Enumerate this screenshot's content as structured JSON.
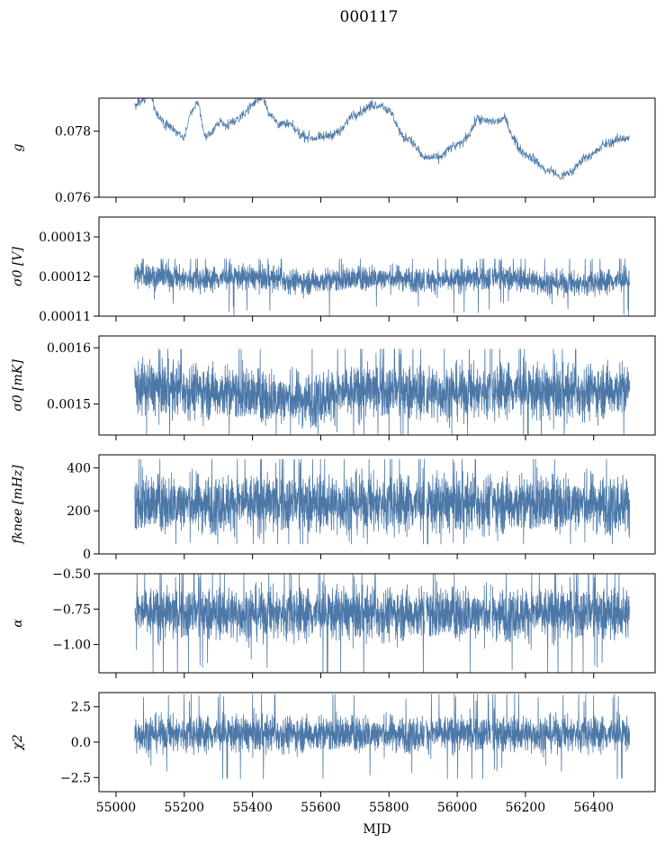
{
  "figure": {
    "title": "000117"
  },
  "chart_data": [
    {
      "type": "line",
      "ylabel": "g",
      "xlim": [
        54950,
        56580
      ],
      "ylim": [
        0.076,
        0.079
      ],
      "yticks": [
        0.076,
        0.078
      ],
      "ytick_labels": [
        "0.076",
        "0.078"
      ],
      "xticks": [
        55000,
        55200,
        55400,
        55600,
        55800,
        56000,
        56200,
        56400
      ],
      "xtick_labels": [],
      "color": "#4c78a8",
      "series": [
        {
          "x": [
            55055,
            55080,
            55100,
            55120,
            55140,
            55160,
            55180,
            55200,
            55220,
            55240,
            55260,
            55280,
            55300,
            55330,
            55360,
            55390,
            55410,
            55430,
            55450,
            55480,
            55510,
            55540,
            55570,
            55600,
            55630,
            55660,
            55690,
            55720,
            55750,
            55780,
            55810,
            55840,
            55860,
            55880,
            55900,
            55920,
            55950,
            55980,
            56010,
            56040,
            56060,
            56080,
            56100,
            56120,
            56140,
            56160,
            56180,
            56200,
            56220,
            56240,
            56260,
            56280,
            56300,
            56320,
            56340,
            56370,
            56400,
            56430,
            56460,
            56490,
            56505
          ],
          "values": [
            0.0788,
            0.0789,
            0.0792,
            0.0785,
            0.0782,
            0.0782,
            0.0779,
            0.0778,
            0.0786,
            0.0789,
            0.0778,
            0.0779,
            0.0783,
            0.0782,
            0.0784,
            0.0787,
            0.0789,
            0.0791,
            0.0785,
            0.0782,
            0.0782,
            0.0779,
            0.0778,
            0.0778,
            0.0779,
            0.078,
            0.0785,
            0.0786,
            0.0788,
            0.0788,
            0.0785,
            0.0778,
            0.0778,
            0.0775,
            0.0772,
            0.0772,
            0.0772,
            0.0775,
            0.0776,
            0.078,
            0.0784,
            0.0783,
            0.0783,
            0.0783,
            0.0784,
            0.0779,
            0.0775,
            0.0773,
            0.0772,
            0.077,
            0.0768,
            0.0768,
            0.0766,
            0.0767,
            0.0768,
            0.0772,
            0.0773,
            0.0776,
            0.0777,
            0.0778,
            0.0778
          ]
        }
      ]
    },
    {
      "type": "line",
      "ylabel": "σ0 [V]",
      "xlim": [
        54950,
        56580
      ],
      "ylim": [
        0.00011,
        0.000135
      ],
      "yticks": [
        0.00011,
        0.00012,
        0.00013
      ],
      "ytick_labels": [
        "0.00011",
        "0.00012",
        "0.00013"
      ],
      "xticks": [
        55000,
        55200,
        55400,
        55600,
        55800,
        56000,
        56200,
        56400
      ],
      "xtick_labels": [],
      "color": "#4c78a8",
      "series": [
        {
          "x": [
            55055,
            55150,
            55250,
            55350,
            55450,
            55550,
            55650,
            55750,
            55850,
            55950,
            56050,
            56150,
            56250,
            56350,
            56450,
            56505
          ],
          "mean": [
            0.0001206,
            0.0001198,
            0.0001192,
            0.0001199,
            0.0001196,
            0.0001186,
            0.0001192,
            0.0001197,
            0.0001195,
            0.0001189,
            0.0001195,
            0.0001197,
            0.0001186,
            0.0001181,
            0.0001189,
            0.0001192
          ],
          "spread": [
            2.4e-06,
            2.2e-06,
            2.2e-06,
            2.2e-06,
            2.2e-06,
            2.2e-06,
            2.2e-06,
            2.2e-06,
            2.2e-06,
            2.2e-06,
            2.2e-06,
            2.2e-06,
            2.2e-06,
            2.2e-06,
            2.2e-06,
            2.2e-06
          ],
          "min": 0.00011,
          "max": 0.0001245
        }
      ]
    },
    {
      "type": "line",
      "ylabel": "σ0 [mK]",
      "xlim": [
        54950,
        56580
      ],
      "ylim": [
        0.001445,
        0.001621
      ],
      "yticks": [
        0.0015,
        0.0016
      ],
      "ytick_labels": [
        "0.0015",
        "0.0016"
      ],
      "xticks": [
        55000,
        55200,
        55400,
        55600,
        55800,
        56000,
        56200,
        56400
      ],
      "xtick_labels": [],
      "color": "#4c78a8",
      "series": [
        {
          "x": [
            55055,
            55150,
            55250,
            55350,
            55450,
            55550,
            55650,
            55750,
            55850,
            55950,
            56050,
            56150,
            56250,
            56350,
            56450,
            56505
          ],
          "mean": [
            0.00153,
            0.001528,
            0.001524,
            0.00152,
            0.001512,
            0.001508,
            0.001518,
            0.001524,
            0.001522,
            0.00152,
            0.001522,
            0.001528,
            0.00152,
            0.001522,
            0.001526,
            0.001526
          ],
          "spread": [
            3.4e-05,
            3.4e-05,
            3.4e-05,
            3.4e-05,
            3.4e-05,
            3.4e-05,
            3.4e-05,
            3.4e-05,
            3.4e-05,
            3.4e-05,
            3.4e-05,
            3.4e-05,
            3.4e-05,
            3.4e-05,
            3.4e-05,
            3.4e-05
          ],
          "min": 0.001445,
          "max": 0.001598
        }
      ]
    },
    {
      "type": "line",
      "ylabel": "fknee [mHz]",
      "xlim": [
        54950,
        56580
      ],
      "ylim": [
        0,
        460
      ],
      "yticks": [
        0,
        200,
        400
      ],
      "ytick_labels": [
        "0",
        "200",
        "400"
      ],
      "xticks": [
        55000,
        55200,
        55400,
        55600,
        55800,
        56000,
        56200,
        56400
      ],
      "xtick_labels": [],
      "color": "#4c78a8",
      "series": [
        {
          "x": [
            55055,
            56505
          ],
          "mean": [
            235,
            235
          ],
          "spread": [
            95,
            95
          ],
          "min": 45,
          "max": 440
        }
      ]
    },
    {
      "type": "line",
      "ylabel": "α",
      "xlim": [
        54950,
        56580
      ],
      "ylim": [
        -1.2,
        -0.5
      ],
      "yticks": [
        -1.0,
        -0.75,
        -0.5
      ],
      "ytick_labels": [
        "−1.00",
        "−0.75",
        "−0.50"
      ],
      "xticks": [
        55000,
        55200,
        55400,
        55600,
        55800,
        56000,
        56200,
        56400
      ],
      "xtick_labels": [],
      "color": "#4c78a8",
      "series": [
        {
          "x": [
            55055,
            56505
          ],
          "mean": [
            -0.78,
            -0.78
          ],
          "spread": [
            0.13,
            0.13
          ],
          "min": -1.2,
          "max": -0.5
        }
      ]
    },
    {
      "type": "line",
      "ylabel": "χ2",
      "xlabel": "MJD",
      "xlim": [
        54950,
        56580
      ],
      "ylim": [
        -3.5,
        3.5
      ],
      "yticks": [
        -2.5,
        0.0,
        2.5
      ],
      "ytick_labels": [
        "−2.5",
        "0.0",
        "2.5"
      ],
      "xticks": [
        55000,
        55200,
        55400,
        55600,
        55800,
        56000,
        56200,
        56400
      ],
      "xtick_labels": [
        "55000",
        "55200",
        "55400",
        "55600",
        "55800",
        "56000",
        "56200",
        "56400"
      ],
      "color": "#4c78a8",
      "series": [
        {
          "x": [
            55055,
            56505
          ],
          "mean": [
            0.6,
            0.6
          ],
          "spread": [
            0.9,
            0.9
          ],
          "min": -2.6,
          "max": 3.4
        }
      ]
    }
  ]
}
